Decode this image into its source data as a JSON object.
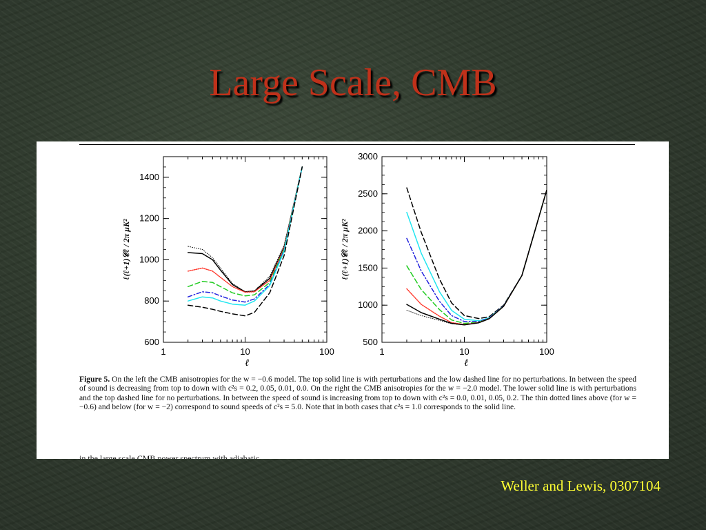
{
  "slide": {
    "title": "Large Scale, CMB",
    "credit": "Weller and Lewis, 0307104"
  },
  "caption": {
    "label": "Figure 5.",
    "text": "On the left the CMB anisotropies for the w = −0.6 model. The top solid line is with perturbations and the low dashed line for no perturbations. In between the speed of sound is decreasing from top to down with c²s = 0.2, 0.05, 0.01, 0.0. On the right the CMB anisotropies for the w = −2.0 model. The lower solid line is with perturbations and the top dashed line for no perturbations. In between the speed of sound is increasing from top to down with c²s = 0.0, 0.01, 0.05, 0.2. The thin dotted lines above (for w = −0.6) and below (for w = −2) correspond to sound speeds of c²s = 5.0. Note that in both cases that c²s = 1.0 corresponds to the solid line.",
    "cutoff_line": "in the large scale CMB power spectrum with adiabatic ..."
  },
  "colors": {
    "title": "#c0311a",
    "credit": "#ffff33",
    "black": "#000000",
    "red": "#ff3b2f",
    "green": "#22cc22",
    "blue": "#2222dd",
    "cyan": "#22e6f0"
  },
  "chart_data": [
    {
      "type": "line",
      "xlabel": "ℓ",
      "ylabel": "ℓ(ℓ+1)𝒞ℓ / 2π  μK²",
      "xscale": "log",
      "xlim": [
        1,
        100
      ],
      "ylim": [
        600,
        1500
      ],
      "xticks": [
        1,
        10,
        100
      ],
      "yticks": [
        600,
        800,
        1000,
        1200,
        1400
      ],
      "grid": false,
      "series": [
        {
          "style": "dotted",
          "color": "black",
          "x": [
            2,
            3,
            4,
            5,
            7,
            10,
            13,
            20,
            30,
            50
          ],
          "y": [
            1065,
            1050,
            1010,
            960,
            885,
            845,
            850,
            920,
            1070,
            1450
          ]
        },
        {
          "style": "solid",
          "color": "black",
          "x": [
            2,
            3,
            4,
            5,
            7,
            10,
            13,
            20,
            30,
            50
          ],
          "y": [
            1035,
            1030,
            1000,
            950,
            880,
            845,
            848,
            910,
            1060,
            1450
          ]
        },
        {
          "style": "dotted-dense",
          "color": "red",
          "x": [
            2,
            3,
            4,
            5,
            7,
            10,
            13,
            20,
            30,
            50
          ],
          "y": [
            945,
            960,
            945,
            915,
            870,
            843,
            845,
            900,
            1055,
            1450
          ]
        },
        {
          "style": "dashed",
          "color": "green",
          "x": [
            2,
            3,
            4,
            5,
            7,
            10,
            13,
            20,
            30,
            50
          ],
          "y": [
            870,
            895,
            890,
            870,
            840,
            825,
            830,
            890,
            1050,
            1450
          ]
        },
        {
          "style": "dash-dot",
          "color": "blue",
          "x": [
            2,
            3,
            4,
            5,
            7,
            10,
            13,
            20,
            30,
            50
          ],
          "y": [
            820,
            845,
            840,
            825,
            805,
            795,
            810,
            880,
            1045,
            1450
          ]
        },
        {
          "style": "solid",
          "color": "cyan",
          "x": [
            2,
            3,
            4,
            5,
            7,
            10,
            13,
            20,
            30,
            50
          ],
          "y": [
            800,
            820,
            815,
            800,
            785,
            780,
            800,
            875,
            1040,
            1450
          ]
        },
        {
          "style": "dashed",
          "color": "black",
          "x": [
            2,
            3,
            4,
            5,
            7,
            10,
            13,
            20,
            30,
            50
          ],
          "y": [
            780,
            770,
            760,
            750,
            738,
            728,
            745,
            840,
            1020,
            1450
          ]
        }
      ]
    },
    {
      "type": "line",
      "xlabel": "ℓ",
      "ylabel": "ℓ(ℓ+1)𝒞ℓ / 2π  μK²",
      "xscale": "log",
      "xlim": [
        1,
        100
      ],
      "ylim": [
        500,
        3000
      ],
      "xticks": [
        1,
        10,
        100
      ],
      "yticks": [
        500,
        1000,
        1500,
        2000,
        2500,
        3000
      ],
      "grid": false,
      "series": [
        {
          "style": "dashed",
          "color": "black",
          "x": [
            2,
            3,
            5,
            7,
            10,
            15,
            20,
            30,
            50,
            100
          ],
          "y": [
            2580,
            1980,
            1350,
            1030,
            860,
            820,
            845,
            1000,
            1400,
            2550
          ]
        },
        {
          "style": "solid",
          "color": "cyan",
          "x": [
            2,
            3,
            5,
            7,
            10,
            15,
            20,
            30,
            50,
            100
          ],
          "y": [
            2250,
            1700,
            1180,
            930,
            810,
            790,
            830,
            990,
            1400,
            2550
          ]
        },
        {
          "style": "dash-dot",
          "color": "blue",
          "x": [
            2,
            3,
            5,
            7,
            10,
            15,
            20,
            30,
            50,
            100
          ],
          "y": [
            1900,
            1460,
            1050,
            860,
            780,
            780,
            825,
            990,
            1400,
            2550
          ]
        },
        {
          "style": "dashed",
          "color": "green",
          "x": [
            2,
            3,
            5,
            7,
            10,
            15,
            20,
            30,
            50,
            100
          ],
          "y": [
            1530,
            1210,
            940,
            800,
            755,
            770,
            820,
            985,
            1400,
            2550
          ]
        },
        {
          "style": "dotted-dense",
          "color": "red",
          "x": [
            2,
            3,
            5,
            7,
            10,
            15,
            20,
            30,
            50,
            100
          ],
          "y": [
            1220,
            1010,
            850,
            765,
            740,
            765,
            818,
            985,
            1400,
            2550
          ]
        },
        {
          "style": "solid",
          "color": "black",
          "x": [
            2,
            3,
            5,
            7,
            10,
            15,
            20,
            30,
            50,
            100
          ],
          "y": [
            1010,
            900,
            810,
            755,
            735,
            763,
            817,
            985,
            1400,
            2550
          ]
        },
        {
          "style": "dotted",
          "color": "black",
          "x": [
            2,
            3,
            5,
            7,
            10,
            15,
            20,
            30,
            50,
            100
          ],
          "y": [
            930,
            860,
            795,
            750,
            733,
            762,
            816,
            985,
            1400,
            2550
          ]
        }
      ]
    }
  ]
}
